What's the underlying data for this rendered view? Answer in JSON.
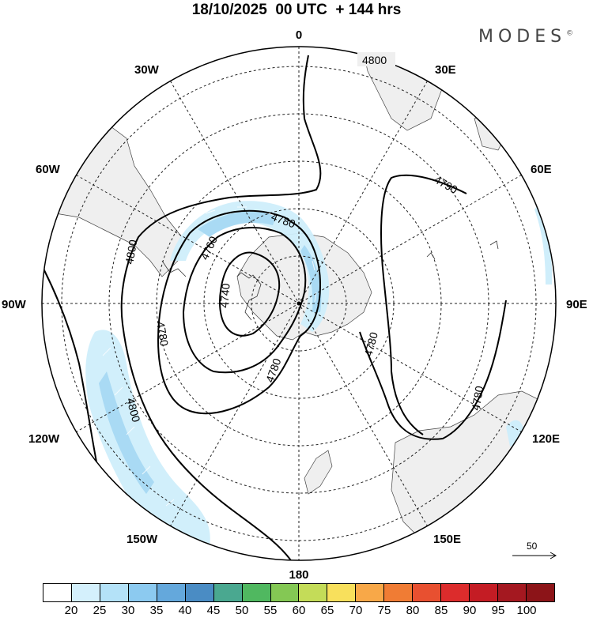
{
  "title": "18/10/2025  00 UTC  + 144 hrs",
  "brand": "MODES",
  "brand_mark": "©",
  "longitude_labels": {
    "n": "0",
    "s": "180",
    "w90": "90W",
    "e90": "90E",
    "w30": "30W",
    "e30": "30E",
    "w60": "60W",
    "e60": "60E",
    "w120": "120W",
    "e120": "120E",
    "w150": "150W",
    "e150": "150E"
  },
  "contour_labels": {
    "c4800_top": "4800",
    "c4790": "4790",
    "c4780_ne": "4780",
    "c4780_se": "4780",
    "c4800_w": "4800",
    "c4800_sw": "4800",
    "c4780_in": "4780",
    "c4760": "4760",
    "c4740": "4740",
    "c4780_w": "4780",
    "c4780_s": "4780"
  },
  "vector_scale": "50",
  "colorbar": {
    "colors": [
      "#ffffff",
      "#d4f0fc",
      "#b4e2f8",
      "#8ccaf0",
      "#64a8dc",
      "#4a8cc4",
      "#4aa890",
      "#50b860",
      "#84c854",
      "#c4dc58",
      "#f8e05c",
      "#f8a848",
      "#f07c34",
      "#e85030",
      "#dc2c2c",
      "#c41c24",
      "#a41820",
      "#8c1418"
    ],
    "ticks": [
      "20",
      "25",
      "30",
      "35",
      "40",
      "45",
      "50",
      "55",
      "60",
      "65",
      "70",
      "75",
      "80",
      "85",
      "90",
      "95",
      "100"
    ]
  }
}
